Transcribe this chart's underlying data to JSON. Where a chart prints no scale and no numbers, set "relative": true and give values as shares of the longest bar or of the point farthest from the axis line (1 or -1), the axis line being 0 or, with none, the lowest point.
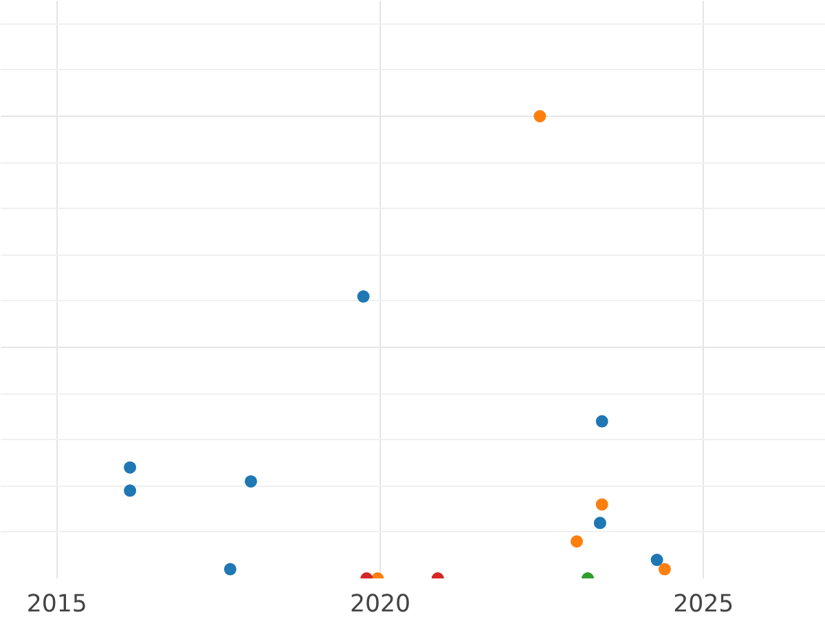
{
  "chart_data": {
    "type": "scatter",
    "relative": true,
    "marker": "circle",
    "grid": true,
    "xlim": [
      2014.13,
      2026.89
    ],
    "xticks": [
      2015,
      2020,
      2025
    ],
    "series": [
      {
        "color": "#1f77b4",
        "x": [
          2016.13,
          2016.13,
          2017.68,
          2018.0,
          2019.74,
          2023.43,
          2023.4,
          2024.28
        ],
        "values": [
          0.24,
          0.19,
          0.02,
          0.21,
          0.61,
          0.34,
          0.12,
          0.04
        ]
      },
      {
        "color": "#ff7f0e",
        "x": [
          2022.47,
          2023.43,
          2023.04,
          2024.4,
          2019.96
        ],
        "values": [
          1.0,
          0.16,
          0.08,
          0.02,
          0.0
        ]
      },
      {
        "color": "#d62728",
        "x": [
          2019.79,
          2020.89
        ],
        "values": [
          0.0,
          0.0
        ]
      },
      {
        "color": "#2ca02c",
        "x": [
          2023.21
        ],
        "values": [
          0.0
        ]
      }
    ]
  }
}
